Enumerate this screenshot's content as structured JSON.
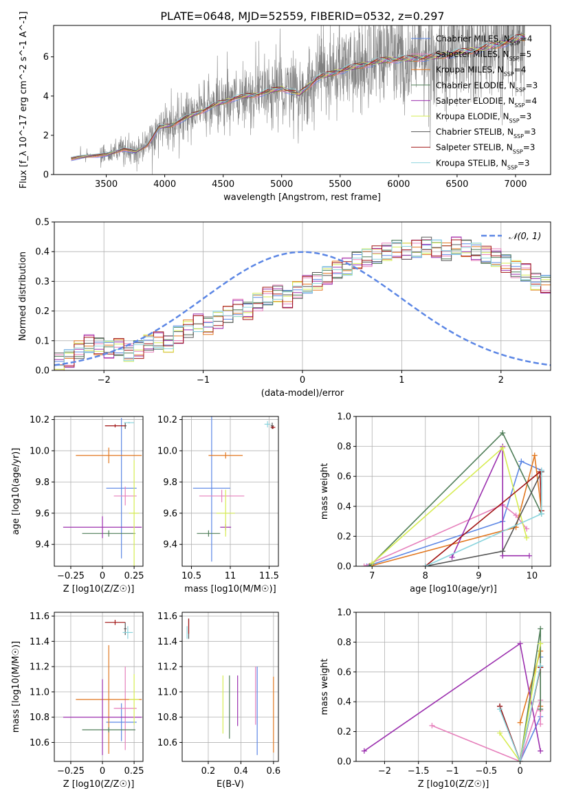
{
  "figure_title": "PLATE=0648, MJD=52559, FIBERID=0532, z=0.297",
  "models": [
    {
      "name": "Chabrier MILES",
      "nssp": "4",
      "color": "#5b86e5"
    },
    {
      "name": "Salpeter MILES",
      "nssp": "5",
      "color": "#e67fbb"
    },
    {
      "name": "Kroupa MILES",
      "nssp": "4",
      "color": "#e2771f"
    },
    {
      "name": "Chabrier ELODIE",
      "nssp": "3",
      "color": "#4e7d57"
    },
    {
      "name": "Salpeter ELODIE",
      "nssp": "4",
      "color": "#9b2fae"
    },
    {
      "name": "Kroupa ELODIE",
      "nssp": "3",
      "color": "#d6ec50"
    },
    {
      "name": "Chabrier STELIB",
      "nssp": "3",
      "color": "#555555"
    },
    {
      "name": "Salpeter STELIB",
      "nssp": "3",
      "color": "#a01212"
    },
    {
      "name": "Kroupa STELIB",
      "nssp": "3",
      "color": "#8ad4dd"
    }
  ],
  "chart_data": [
    {
      "id": "spectrum",
      "type": "line",
      "title": "PLATE=0648, MJD=52559, FIBERID=0532, z=0.297",
      "xlabel": "wavelength [Angstrom, rest frame]",
      "ylabel": "Flux [f_λ 10^-17 erg cm^-2 s^-1 A^-1]",
      "xlim": [
        3050,
        7300
      ],
      "ylim": [
        0,
        7.6
      ],
      "xticks": [
        3500,
        4000,
        4500,
        5000,
        5500,
        6000,
        6500,
        7000
      ],
      "yticks": [
        0,
        2,
        4,
        6
      ],
      "grid": false,
      "legend": "upper right",
      "observed_color": "#808080",
      "data_range": [
        3200,
        7080
      ],
      "continuum_points": [
        [
          3200,
          0.8
        ],
        [
          3350,
          0.95
        ],
        [
          3500,
          1.0
        ],
        [
          3650,
          1.3
        ],
        [
          3750,
          1.15
        ],
        [
          3850,
          1.5
        ],
        [
          3950,
          2.4
        ],
        [
          4050,
          2.5
        ],
        [
          4150,
          2.8
        ],
        [
          4300,
          3.2
        ],
        [
          4450,
          3.6
        ],
        [
          4600,
          3.9
        ],
        [
          4800,
          4.1
        ],
        [
          5000,
          4.4
        ],
        [
          5150,
          4.1
        ],
        [
          5300,
          4.9
        ],
        [
          5500,
          5.3
        ],
        [
          5700,
          5.6
        ],
        [
          5900,
          5.85
        ],
        [
          6100,
          5.9
        ],
        [
          6300,
          6.0
        ],
        [
          6500,
          6.2
        ],
        [
          6700,
          6.4
        ],
        [
          6900,
          6.7
        ],
        [
          7050,
          7.0
        ]
      ]
    },
    {
      "id": "residuals",
      "type": "line",
      "xlabel": "(data-model)/error",
      "ylabel": "Normed distribution",
      "xlim": [
        -2.5,
        2.5
      ],
      "ylim": [
        0,
        0.5
      ],
      "xticks": [
        -2,
        -1,
        0,
        1,
        2
      ],
      "yticks": [
        0.0,
        0.1,
        0.2,
        0.3,
        0.4,
        0.5
      ],
      "grid": true,
      "legend": "upper right",
      "reference_label": "𝒩(0, 1)",
      "reference_color": "#5b86e5",
      "bin_edges_start": -2.5,
      "bin_width": 0.1,
      "histogram": [
        0.03,
        0.04,
        0.07,
        0.09,
        0.08,
        0.07,
        0.08,
        0.06,
        0.07,
        0.09,
        0.1,
        0.09,
        0.12,
        0.14,
        0.16,
        0.15,
        0.17,
        0.19,
        0.21,
        0.2,
        0.23,
        0.25,
        0.26,
        0.24,
        0.27,
        0.29,
        0.3,
        0.32,
        0.34,
        0.35,
        0.37,
        0.38,
        0.39,
        0.4,
        0.41,
        0.4,
        0.41,
        0.42,
        0.41,
        0.4,
        0.42,
        0.41,
        0.4,
        0.39,
        0.38,
        0.36,
        0.34,
        0.33,
        0.3,
        0.29
      ]
    },
    {
      "id": "age_vs_Z",
      "type": "scatter",
      "xlabel": "Z [log10(Z/Z☉)]",
      "ylabel": "age [log10(age/yr)]",
      "xlim": [
        -0.38,
        0.32
      ],
      "ylim": [
        9.26,
        10.22
      ],
      "xticks": [
        -0.25,
        0.0,
        0.25
      ],
      "yticks": [
        9.4,
        9.6,
        9.8,
        10.0,
        10.2
      ],
      "grid": true,
      "points": [
        {
          "model": 0,
          "x": 0.15,
          "xerr": 0.12,
          "y": 9.76,
          "yerr": 0.45
        },
        {
          "model": 1,
          "x": 0.18,
          "xerr": 0.09,
          "y": 9.71,
          "yerr": 0.06
        },
        {
          "model": 2,
          "x": 0.05,
          "xerr": 0.26,
          "y": 9.97,
          "yerr": 0.05
        },
        {
          "model": 3,
          "x": 0.05,
          "xerr": 0.21,
          "y": 9.47,
          "yerr": 0.02
        },
        {
          "model": 4,
          "x": 0.0,
          "xerr": 0.31,
          "y": 9.51,
          "yerr": 0.07
        },
        {
          "model": 5,
          "x": 0.25,
          "xerr": 0.04,
          "y": 9.6,
          "yerr": 0.34
        },
        {
          "model": 6,
          "x": 0.18,
          "xerr": 0.01,
          "y": 10.16,
          "yerr": 0.02
        },
        {
          "model": 7,
          "x": 0.1,
          "xerr": 0.08,
          "y": 10.16,
          "yerr": 0.01
        },
        {
          "model": 8,
          "x": 0.21,
          "xerr": 0.04,
          "y": 10.18,
          "yerr": 0.005
        }
      ]
    },
    {
      "id": "age_vs_mass",
      "type": "scatter",
      "xlabel": "mass [log10(M/M☉)]",
      "xlim": [
        10.38,
        11.62
      ],
      "ylim": [
        9.26,
        10.22
      ],
      "xticks": [
        10.5,
        11.0,
        11.5
      ],
      "yticks": [
        9.4,
        9.6,
        9.8,
        10.0,
        10.2
      ],
      "grid": true,
      "points": [
        {
          "model": 0,
          "x": 10.76,
          "xerr": 0.24,
          "y": 9.76,
          "yerr": 0.47
        },
        {
          "model": 1,
          "x": 10.89,
          "xerr": 0.29,
          "y": 9.71,
          "yerr": 0.04
        },
        {
          "model": 2,
          "x": 10.94,
          "xerr": 0.22,
          "y": 9.97,
          "yerr": 0.02
        },
        {
          "model": 3,
          "x": 10.72,
          "xerr": 0.15,
          "y": 9.47,
          "yerr": 0.02
        },
        {
          "model": 4,
          "x": 10.94,
          "xerr": 0.07,
          "y": 9.51,
          "yerr": 0.02
        },
        {
          "model": 5,
          "x": 10.94,
          "xerr": 0.12,
          "y": 9.6,
          "yerr": 0.15
        },
        {
          "model": 6,
          "x": 11.54,
          "xerr": 0.02,
          "y": 10.16,
          "yerr": 0.02
        },
        {
          "model": 7,
          "x": 11.55,
          "xerr": 0.03,
          "y": 10.15,
          "yerr": 0.01
        },
        {
          "model": 8,
          "x": 11.48,
          "xerr": 0.04,
          "y": 10.17,
          "yerr": 0.02
        }
      ]
    },
    {
      "id": "weight_vs_age",
      "type": "line",
      "xlabel": "age [log10(age/yr)]",
      "ylabel": "mass weight",
      "xlim": [
        6.7,
        10.35
      ],
      "ylim": [
        0,
        1
      ],
      "xticks": [
        7,
        8,
        9,
        10
      ],
      "yticks": [
        0.0,
        0.2,
        0.4,
        0.6,
        0.8,
        1.0
      ],
      "grid": true,
      "series": [
        {
          "model": 0,
          "points": [
            [
              6.9,
              0.0
            ],
            [
              9.45,
              0.3
            ],
            [
              9.8,
              0.7
            ],
            [
              10.18,
              0.64
            ]
          ]
        },
        {
          "model": 1,
          "points": [
            [
              6.85,
              0.0
            ],
            [
              9.45,
              0.41
            ],
            [
              9.7,
              0.34
            ],
            [
              9.9,
              0.25
            ]
          ]
        },
        {
          "model": 2,
          "points": [
            [
              6.95,
              0.0
            ],
            [
              9.7,
              0.26
            ],
            [
              10.05,
              0.74
            ],
            [
              10.18,
              0.37
            ]
          ]
        },
        {
          "model": 3,
          "points": [
            [
              6.95,
              0.0
            ],
            [
              9.45,
              0.89
            ],
            [
              10.18,
              0.35
            ]
          ]
        },
        {
          "model": 4,
          "points": [
            [
              8.5,
              0.06
            ],
            [
              9.45,
              0.8
            ],
            [
              9.45,
              0.07
            ],
            [
              9.95,
              0.07
            ]
          ]
        },
        {
          "model": 5,
          "points": [
            [
              7.0,
              0.02
            ],
            [
              9.45,
              0.79
            ],
            [
              9.9,
              0.19
            ]
          ]
        },
        {
          "model": 6,
          "points": [
            [
              8.0,
              0.0
            ],
            [
              9.45,
              0.1
            ],
            [
              10.18,
              0.63
            ]
          ]
        },
        {
          "model": 7,
          "points": [
            [
              8.0,
              0.0
            ],
            [
              10.15,
              0.63
            ],
            [
              10.18,
              0.37
            ]
          ]
        },
        {
          "model": 8,
          "points": [
            [
              8.0,
              0.0
            ],
            [
              10.18,
              0.35
            ],
            [
              10.18,
              0.64
            ]
          ]
        }
      ]
    },
    {
      "id": "mass_vs_Z",
      "type": "scatter",
      "xlabel": "Z [log10(Z/Z☉)]",
      "ylabel": "mass [log10(M/M☉)]",
      "xlim": [
        -0.38,
        0.32
      ],
      "ylim": [
        10.45,
        11.63
      ],
      "xticks": [
        -0.25,
        0.0,
        0.25
      ],
      "yticks": [
        10.6,
        10.8,
        11.0,
        11.2,
        11.4,
        11.6
      ],
      "grid": true,
      "points": [
        {
          "model": 0,
          "x": 0.15,
          "xerr": 0.12,
          "y": 10.76,
          "yerr": 0.15
        },
        {
          "model": 1,
          "x": 0.18,
          "xerr": 0.09,
          "y": 10.87,
          "yerr": 0.33
        },
        {
          "model": 2,
          "x": 0.05,
          "xerr": 0.26,
          "y": 10.94,
          "yerr": 0.43
        },
        {
          "model": 3,
          "x": 0.05,
          "xerr": 0.21,
          "y": 10.7,
          "yerr": 0.02
        },
        {
          "model": 4,
          "x": 0.0,
          "xerr": 0.31,
          "y": 10.8,
          "yerr": 0.3
        },
        {
          "model": 5,
          "x": 0.25,
          "xerr": 0.04,
          "y": 10.94,
          "yerr": 0.2
        },
        {
          "model": 6,
          "x": 0.18,
          "xerr": 0.01,
          "y": 11.5,
          "yerr": 0.05
        },
        {
          "model": 7,
          "x": 0.1,
          "xerr": 0.08,
          "y": 11.55,
          "yerr": 0.02
        },
        {
          "model": 8,
          "x": 0.2,
          "xerr": 0.04,
          "y": 11.47,
          "yerr": 0.05
        }
      ]
    },
    {
      "id": "mass_vs_ebv",
      "type": "scatter",
      "xlabel": "E(B-V)",
      "xlim": [
        0.04,
        0.63
      ],
      "ylim": [
        10.45,
        11.63
      ],
      "xticks": [
        0.2,
        0.4,
        0.6
      ],
      "yticks": [
        10.6,
        10.8,
        11.0,
        11.2,
        11.4,
        11.6
      ],
      "grid": true,
      "points": [
        {
          "model": 0,
          "x": 0.5,
          "y": 10.85,
          "yerr": 0.35
        },
        {
          "model": 1,
          "x": 0.49,
          "y": 10.97,
          "yerr": 0.23
        },
        {
          "model": 2,
          "x": 0.6,
          "y": 10.82,
          "yerr": 0.3
        },
        {
          "model": 3,
          "x": 0.33,
          "y": 10.88,
          "yerr": 0.25
        },
        {
          "model": 4,
          "x": 0.38,
          "y": 10.93,
          "yerr": 0.2
        },
        {
          "model": 5,
          "x": 0.29,
          "y": 10.9,
          "yerr": 0.23
        },
        {
          "model": 6,
          "x": 0.08,
          "y": 11.5,
          "yerr": 0.08
        },
        {
          "model": 7,
          "x": 0.08,
          "y": 11.52,
          "yerr": 0.06
        },
        {
          "model": 8,
          "x": 0.07,
          "y": 11.47,
          "yerr": 0.05
        }
      ]
    },
    {
      "id": "weight_vs_Z",
      "type": "line",
      "xlabel": "Z [log10(Z/Z☉)]",
      "ylabel": "mass weight",
      "xlim": [
        -2.42,
        0.45
      ],
      "ylim": [
        0,
        1
      ],
      "xticks": [
        -2.0,
        -1.5,
        -1.0,
        -0.5,
        0.0
      ],
      "yticks": [
        0.0,
        0.2,
        0.4,
        0.6,
        0.8,
        1.0
      ],
      "grid": true,
      "series": [
        {
          "model": 0,
          "points": [
            [
              0.0,
              0.0
            ],
            [
              0.3,
              0.3
            ],
            [
              0.3,
              0.7
            ],
            [
              0.3,
              0.64
            ]
          ]
        },
        {
          "model": 1,
          "points": [
            [
              -1.3,
              0.24
            ],
            [
              0.0,
              0.0
            ],
            [
              0.3,
              0.41
            ],
            [
              0.3,
              0.34
            ],
            [
              0.3,
              0.25
            ]
          ]
        },
        {
          "model": 2,
          "points": [
            [
              0.0,
              0.26
            ],
            [
              0.3,
              0.74
            ],
            [
              0.3,
              0.37
            ]
          ]
        },
        {
          "model": 3,
          "points": [
            [
              0.0,
              0.0
            ],
            [
              0.3,
              0.89
            ],
            [
              0.3,
              0.35
            ]
          ]
        },
        {
          "model": 4,
          "points": [
            [
              -2.3,
              0.07
            ],
            [
              0.0,
              0.79
            ],
            [
              0.3,
              0.07
            ]
          ]
        },
        {
          "model": 5,
          "points": [
            [
              -0.3,
              0.19
            ],
            [
              0.0,
              0.0
            ],
            [
              0.3,
              0.79
            ]
          ]
        },
        {
          "model": 6,
          "points": [
            [
              -0.3,
              0.37
            ],
            [
              0.0,
              0.0
            ],
            [
              0.3,
              0.63
            ]
          ]
        },
        {
          "model": 7,
          "points": [
            [
              -0.3,
              0.37
            ],
            [
              0.0,
              0.0
            ],
            [
              0.3,
              0.63
            ]
          ]
        },
        {
          "model": 8,
          "points": [
            [
              -0.3,
              0.35
            ],
            [
              0.0,
              0.0
            ],
            [
              0.3,
              0.64
            ]
          ]
        }
      ]
    }
  ]
}
